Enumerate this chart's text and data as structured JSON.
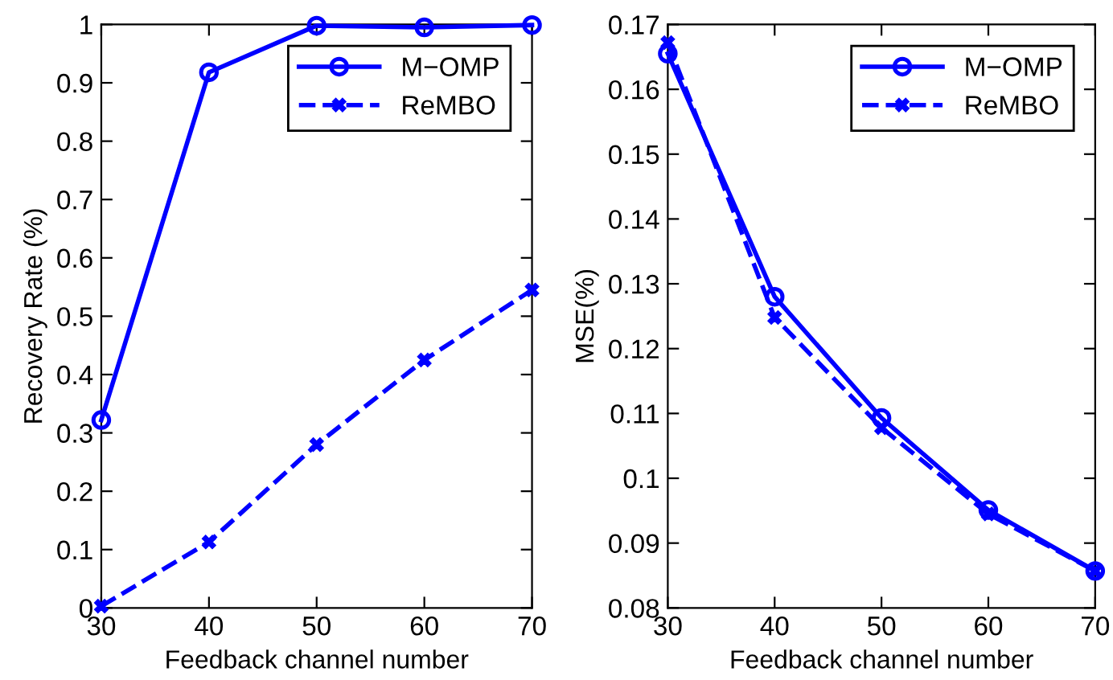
{
  "chart_data": [
    {
      "type": "line",
      "xlabel": "Feedback channel number",
      "ylabel": "Recovery Rate (%)",
      "x": [
        30,
        40,
        50,
        60,
        70
      ],
      "xlim": [
        30,
        70
      ],
      "xticks": [
        30,
        40,
        50,
        60,
        70
      ],
      "ylim": [
        0,
        1
      ],
      "yticks": [
        0,
        0.1,
        0.2,
        0.3,
        0.4,
        0.5,
        0.6,
        0.7,
        0.8,
        0.9,
        1
      ],
      "grid": false,
      "legend": "top right",
      "series": [
        {
          "name": "M−OMP",
          "color": "#0000ff",
          "marker": "circle",
          "line_style": "solid",
          "values": [
            0.322,
            0.918,
            0.998,
            0.995,
            0.999
          ]
        },
        {
          "name": "ReMBO",
          "color": "#0000ff",
          "marker": "cross",
          "line_style": "dashed",
          "values": [
            0.003,
            0.113,
            0.28,
            0.425,
            0.545
          ]
        }
      ]
    },
    {
      "type": "line",
      "xlabel": "Feedback channel number",
      "ylabel": "MSE(%)",
      "x": [
        30,
        40,
        50,
        60,
        70
      ],
      "xlim": [
        30,
        70
      ],
      "xticks": [
        30,
        40,
        50,
        60,
        70
      ],
      "ylim": [
        0.08,
        0.17
      ],
      "yticks": [
        0.08,
        0.09,
        0.1,
        0.11,
        0.12,
        0.13,
        0.14,
        0.15,
        0.16,
        0.17
      ],
      "grid": false,
      "legend": "top right",
      "series": [
        {
          "name": "M−OMP",
          "color": "#0000ff",
          "marker": "circle",
          "line_style": "solid",
          "values": [
            0.1655,
            0.128,
            0.1093,
            0.0951,
            0.0857
          ]
        },
        {
          "name": "ReMBO",
          "color": "#0000ff",
          "marker": "cross",
          "line_style": "dashed",
          "values": [
            0.1672,
            0.1248,
            0.1078,
            0.0945,
            0.0857
          ]
        }
      ]
    }
  ]
}
